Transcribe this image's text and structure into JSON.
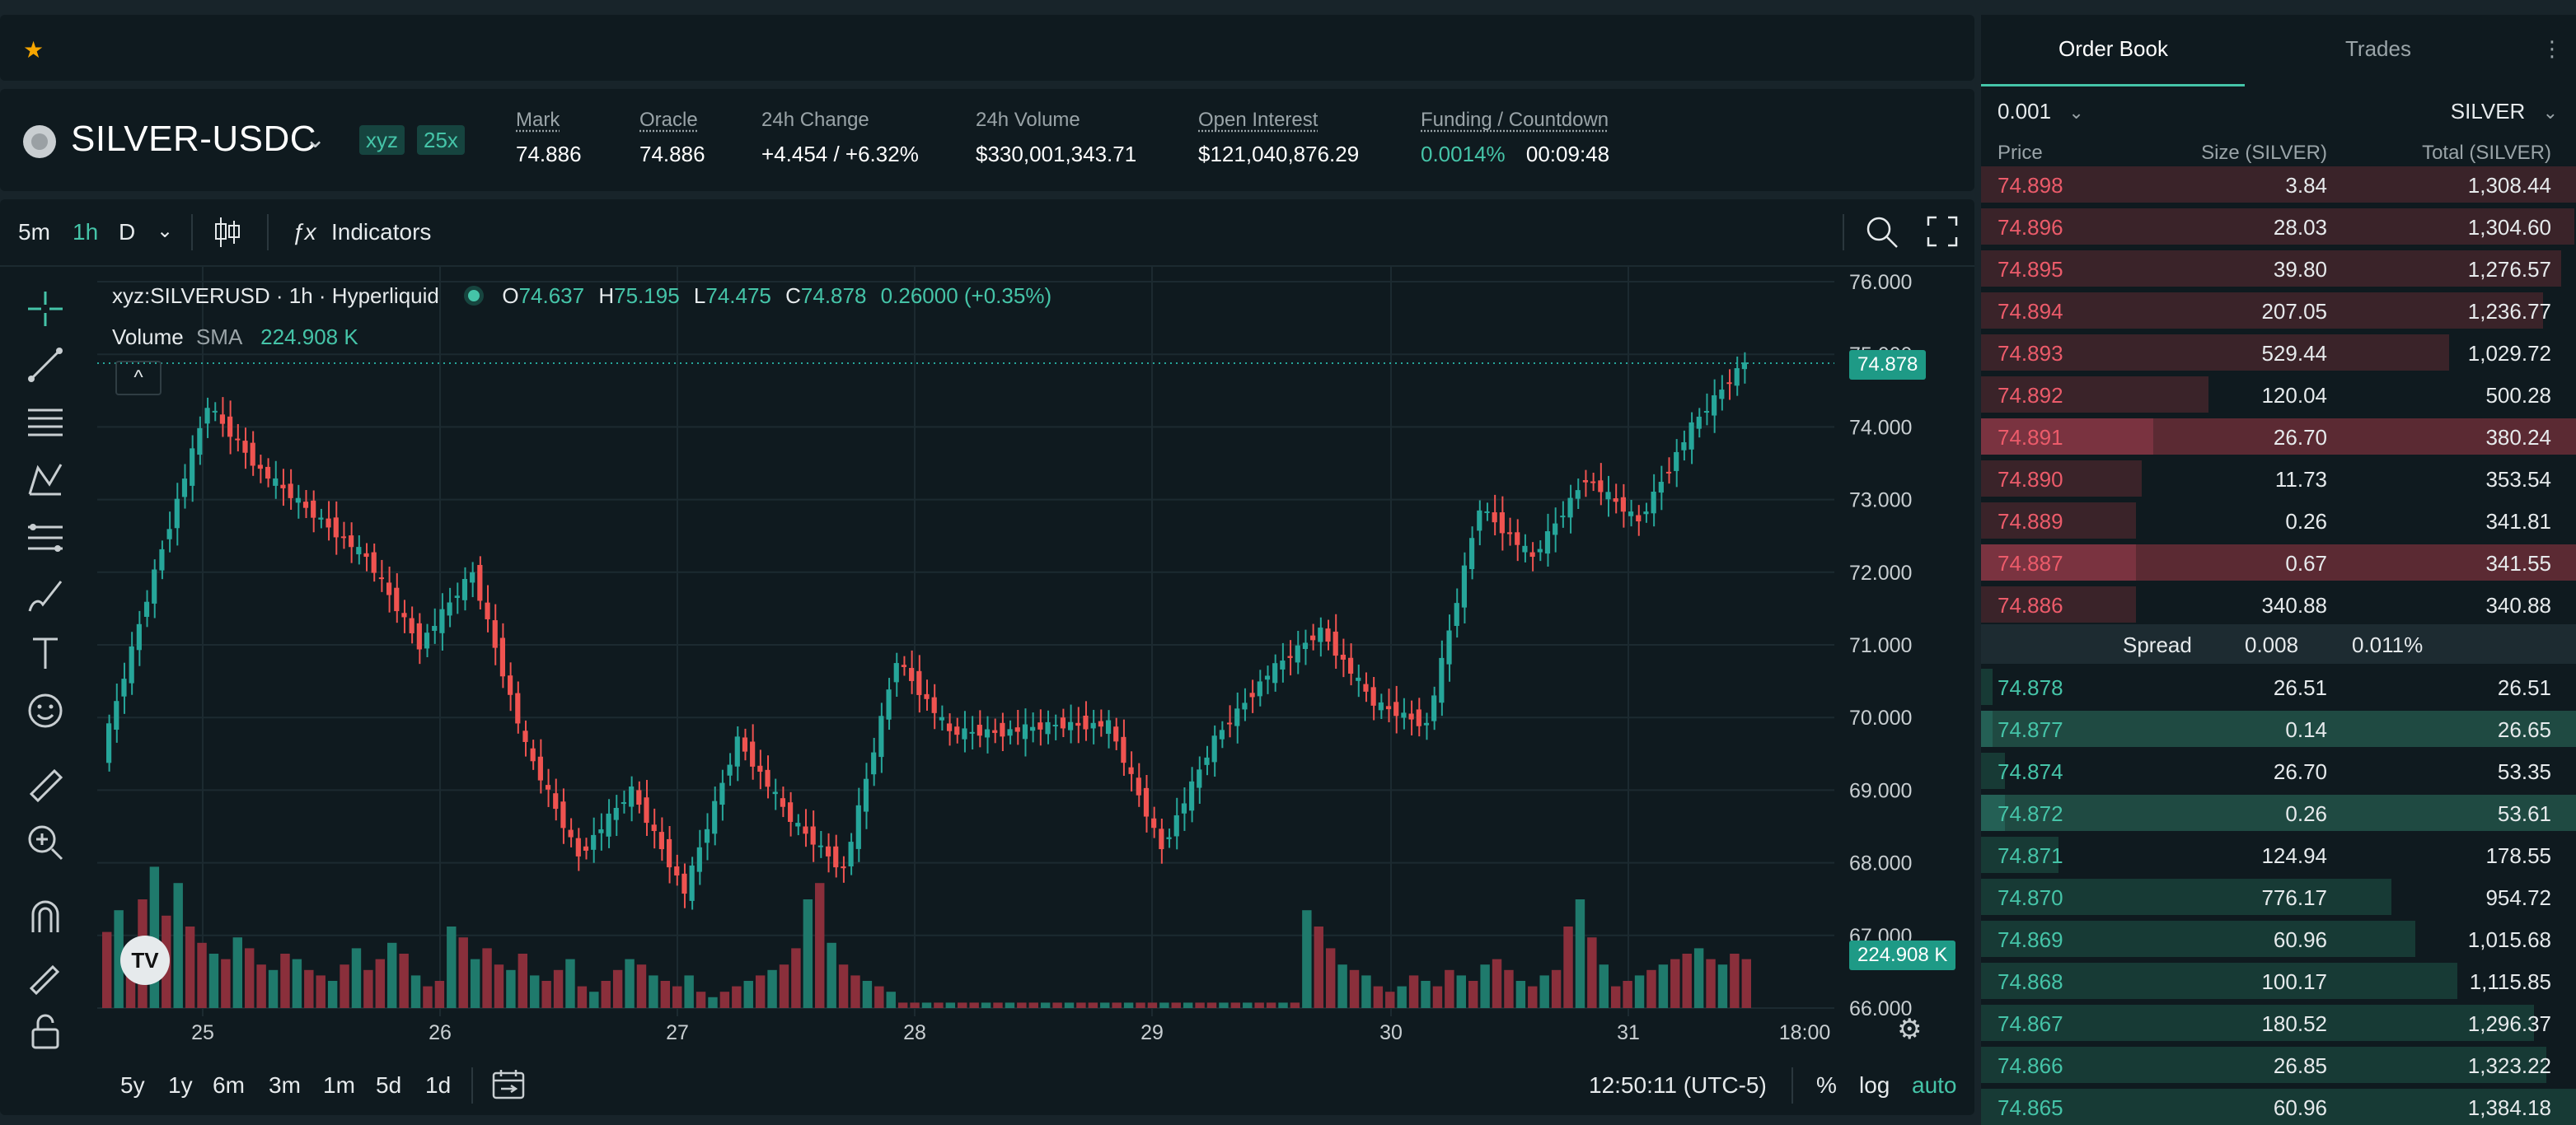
{
  "favorites": {
    "star_icon": "star-icon"
  },
  "market": {
    "pair": "SILVER-USDC",
    "dex_badge": "xyz",
    "leverage_badge": "25x",
    "stats": [
      {
        "label": "Mark",
        "value": "74.886"
      },
      {
        "label": "Oracle",
        "value": "74.886"
      },
      {
        "label": "24h Change",
        "value": "+4.454 / +6.32%"
      },
      {
        "label": "24h Volume",
        "value": "$330,001,343.71"
      },
      {
        "label": "Open Interest",
        "value": "$121,040,876.29"
      },
      {
        "label": "Funding / Countdown",
        "value": "0.0014%",
        "value2": "00:09:48"
      }
    ]
  },
  "chart_toolbar": {
    "intervals": [
      "5m",
      "1h",
      "D"
    ],
    "active_interval": "1h",
    "indicators_label": "Indicators"
  },
  "chart_legend": {
    "symbol": "xyz:SILVERUSD · 1h · Hyperliquid",
    "o_label": "O",
    "o": "74.637",
    "h_label": "H",
    "h": "75.195",
    "l_label": "L",
    "l": "74.475",
    "c_label": "C",
    "c": "74.878",
    "change": "0.26000 (+0.35%)",
    "volume_label": "Volume",
    "sma_label": "SMA",
    "sma_value": "224.908 K"
  },
  "chart_data": {
    "type": "candlestick",
    "y_ticks": [
      "76.000",
      "75.000",
      "74.000",
      "73.000",
      "72.000",
      "71.000",
      "70.000",
      "69.000",
      "68.000",
      "67.000",
      "66.000"
    ],
    "ylim": [
      66,
      76
    ],
    "x_ticks": [
      "25",
      "26",
      "27",
      "28",
      "29",
      "30",
      "31",
      "18:00"
    ],
    "last_price_label": "74.878",
    "volume_label": "224.908 K",
    "last_price": 74.878,
    "series": [
      {
        "name": "price",
        "segments": [
          {
            "from": 69.5,
            "to": 72.0
          },
          {
            "from": 72.0,
            "to": 74.3
          },
          {
            "from": 74.3,
            "to": 73.4
          },
          {
            "from": 73.4,
            "to": 72.8
          },
          {
            "from": 72.8,
            "to": 72.2
          },
          {
            "from": 72.2,
            "to": 71.0
          },
          {
            "from": 71.0,
            "to": 72.0
          },
          {
            "from": 72.0,
            "to": 69.6
          },
          {
            "from": 69.6,
            "to": 68.1
          },
          {
            "from": 68.1,
            "to": 69.0
          },
          {
            "from": 69.0,
            "to": 67.6
          },
          {
            "from": 67.6,
            "to": 69.7
          },
          {
            "from": 69.7,
            "to": 68.6
          },
          {
            "from": 68.6,
            "to": 67.9
          },
          {
            "from": 67.9,
            "to": 70.8
          },
          {
            "from": 70.8,
            "to": 69.8
          },
          {
            "from": 69.8,
            "to": 69.8
          },
          {
            "from": 69.8,
            "to": 69.9
          },
          {
            "from": 69.9,
            "to": 69.9
          },
          {
            "from": 69.9,
            "to": 68.2
          },
          {
            "from": 68.2,
            "to": 69.7
          },
          {
            "from": 69.7,
            "to": 70.6
          },
          {
            "from": 70.6,
            "to": 71.2
          },
          {
            "from": 71.2,
            "to": 70.2
          },
          {
            "from": 70.2,
            "to": 69.9
          },
          {
            "from": 69.9,
            "to": 72.9
          },
          {
            "from": 72.9,
            "to": 72.2
          },
          {
            "from": 72.2,
            "to": 73.3
          },
          {
            "from": 73.3,
            "to": 72.7
          },
          {
            "from": 72.7,
            "to": 74.0
          },
          {
            "from": 74.0,
            "to": 74.9
          }
        ]
      }
    ],
    "volume_series": [
      28,
      36,
      22,
      40,
      52,
      34,
      46,
      30,
      24,
      20,
      18,
      26,
      22,
      16,
      14,
      20,
      18,
      14,
      12,
      10,
      16,
      22,
      14,
      18,
      24,
      20,
      12,
      8,
      10,
      30,
      26,
      18,
      22,
      16,
      14,
      20,
      12,
      10,
      14,
      18,
      8,
      6,
      10,
      14,
      18,
      16,
      12,
      10,
      8,
      12,
      6,
      4,
      6,
      8,
      10,
      12,
      14,
      16,
      22,
      40,
      46,
      24,
      16,
      12,
      10,
      8,
      6,
      2,
      2,
      2,
      2,
      2,
      2,
      2,
      2,
      2,
      2,
      2,
      2,
      2,
      2,
      2,
      2,
      2,
      2,
      2,
      2,
      2,
      2,
      2,
      2,
      2,
      2,
      2,
      2,
      2,
      2,
      2,
      2,
      2,
      2,
      36,
      30,
      22,
      16,
      14,
      12,
      8,
      6,
      8,
      12,
      10,
      8,
      14,
      12,
      10,
      16,
      18,
      14,
      10,
      8,
      12,
      14,
      30,
      40,
      26,
      16,
      8,
      10,
      12,
      14,
      16,
      18,
      20,
      22,
      18,
      16,
      20,
      18
    ]
  },
  "bottom_bar": {
    "ranges": [
      "5y",
      "1y",
      "6m",
      "3m",
      "1m",
      "5d",
      "1d"
    ],
    "time": "12:50:11 (UTC-5)",
    "pct": "%",
    "log": "log",
    "auto": "auto"
  },
  "orderbook": {
    "tabs": [
      "Order Book",
      "Trades"
    ],
    "tick": "0.001",
    "unit": "SILVER",
    "headers": [
      "Price",
      "Size (SILVER)",
      "Total (SILVER)"
    ],
    "asks": [
      {
        "price": "74.898",
        "size": "3.84",
        "total": "1,308.44",
        "depth": 1.0,
        "hl": false
      },
      {
        "price": "74.896",
        "size": "28.03",
        "total": "1,304.60",
        "depth": 0.997,
        "hl": false
      },
      {
        "price": "74.895",
        "size": "39.80",
        "total": "1,276.57",
        "depth": 0.975,
        "hl": false
      },
      {
        "price": "74.894",
        "size": "207.05",
        "total": "1,236.77",
        "depth": 0.945,
        "hl": false
      },
      {
        "price": "74.893",
        "size": "529.44",
        "total": "1,029.72",
        "depth": 0.787,
        "hl": false
      },
      {
        "price": "74.892",
        "size": "120.04",
        "total": "500.28",
        "depth": 0.382,
        "hl": false
      },
      {
        "price": "74.891",
        "size": "26.70",
        "total": "380.24",
        "depth": 0.29,
        "hl": true
      },
      {
        "price": "74.890",
        "size": "11.73",
        "total": "353.54",
        "depth": 0.27,
        "hl": false
      },
      {
        "price": "74.889",
        "size": "0.26",
        "total": "341.81",
        "depth": 0.261,
        "hl": false
      },
      {
        "price": "74.887",
        "size": "0.67",
        "total": "341.55",
        "depth": 0.261,
        "hl": true
      },
      {
        "price": "74.886",
        "size": "340.88",
        "total": "340.88",
        "depth": 0.26,
        "hl": false
      }
    ],
    "spread_label": "Spread",
    "spread_value": "0.008",
    "spread_pct": "0.011%",
    "bids": [
      {
        "price": "74.878",
        "size": "26.51",
        "total": "26.51",
        "depth": 0.02,
        "hl": false
      },
      {
        "price": "74.877",
        "size": "0.14",
        "total": "26.65",
        "depth": 0.02,
        "hl": true
      },
      {
        "price": "74.874",
        "size": "26.70",
        "total": "53.35",
        "depth": 0.04,
        "hl": false
      },
      {
        "price": "74.872",
        "size": "0.26",
        "total": "53.61",
        "depth": 0.04,
        "hl": true
      },
      {
        "price": "74.871",
        "size": "124.94",
        "total": "178.55",
        "depth": 0.13,
        "hl": false
      },
      {
        "price": "74.870",
        "size": "776.17",
        "total": "954.72",
        "depth": 0.69,
        "hl": false
      },
      {
        "price": "74.869",
        "size": "60.96",
        "total": "1,015.68",
        "depth": 0.73,
        "hl": false
      },
      {
        "price": "74.868",
        "size": "100.17",
        "total": "1,115.85",
        "depth": 0.8,
        "hl": false
      },
      {
        "price": "74.867",
        "size": "180.52",
        "total": "1,296.37",
        "depth": 0.93,
        "hl": false
      },
      {
        "price": "74.866",
        "size": "26.85",
        "total": "1,323.22",
        "depth": 0.95,
        "hl": false
      },
      {
        "price": "74.865",
        "size": "60.96",
        "total": "1,384.18",
        "depth": 1.0,
        "hl": false
      }
    ]
  }
}
